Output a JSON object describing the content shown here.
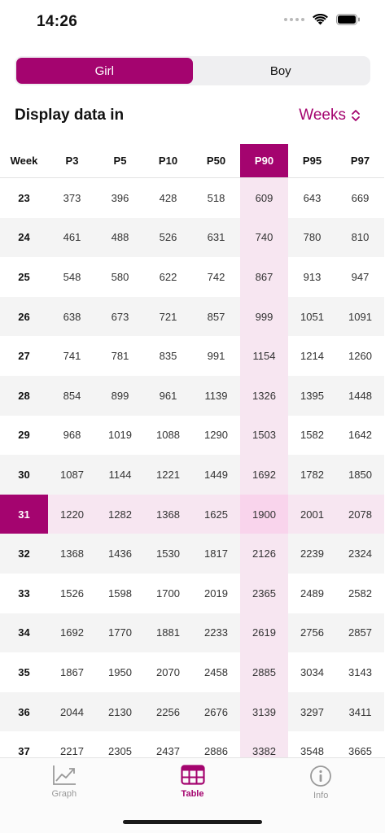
{
  "status": {
    "time": "14:26"
  },
  "segmented": {
    "options": [
      "Girl",
      "Boy"
    ],
    "selected": "Girl"
  },
  "display": {
    "label": "Display data in",
    "unit": "Weeks"
  },
  "colors": {
    "accent": "#a4046f",
    "highlight": "#f7e6f1"
  },
  "table": {
    "headers": [
      "Week",
      "P3",
      "P5",
      "P10",
      "P50",
      "P90",
      "P95",
      "P97"
    ],
    "selected_column": "P90",
    "selected_week": "31",
    "rows": [
      [
        "23",
        "373",
        "396",
        "428",
        "518",
        "609",
        "643",
        "669"
      ],
      [
        "24",
        "461",
        "488",
        "526",
        "631",
        "740",
        "780",
        "810"
      ],
      [
        "25",
        "548",
        "580",
        "622",
        "742",
        "867",
        "913",
        "947"
      ],
      [
        "26",
        "638",
        "673",
        "721",
        "857",
        "999",
        "1051",
        "1091"
      ],
      [
        "27",
        "741",
        "781",
        "835",
        "991",
        "1154",
        "1214",
        "1260"
      ],
      [
        "28",
        "854",
        "899",
        "961",
        "1139",
        "1326",
        "1395",
        "1448"
      ],
      [
        "29",
        "968",
        "1019",
        "1088",
        "1290",
        "1503",
        "1582",
        "1642"
      ],
      [
        "30",
        "1087",
        "1144",
        "1221",
        "1449",
        "1692",
        "1782",
        "1850"
      ],
      [
        "31",
        "1220",
        "1282",
        "1368",
        "1625",
        "1900",
        "2001",
        "2078"
      ],
      [
        "32",
        "1368",
        "1436",
        "1530",
        "1817",
        "2126",
        "2239",
        "2324"
      ],
      [
        "33",
        "1526",
        "1598",
        "1700",
        "2019",
        "2365",
        "2489",
        "2582"
      ],
      [
        "34",
        "1692",
        "1770",
        "1881",
        "2233",
        "2619",
        "2756",
        "2857"
      ],
      [
        "35",
        "1867",
        "1950",
        "2070",
        "2458",
        "2885",
        "3034",
        "3143"
      ],
      [
        "36",
        "2044",
        "2130",
        "2256",
        "2676",
        "3139",
        "3297",
        "3411"
      ],
      [
        "37",
        "2217",
        "2305",
        "2437",
        "2886",
        "3382",
        "3548",
        "3665"
      ]
    ]
  },
  "tabs": [
    {
      "label": "Graph",
      "icon": "graph-icon",
      "active": false
    },
    {
      "label": "Table",
      "icon": "table-icon",
      "active": true
    },
    {
      "label": "Info",
      "icon": "info-icon",
      "active": false
    }
  ]
}
